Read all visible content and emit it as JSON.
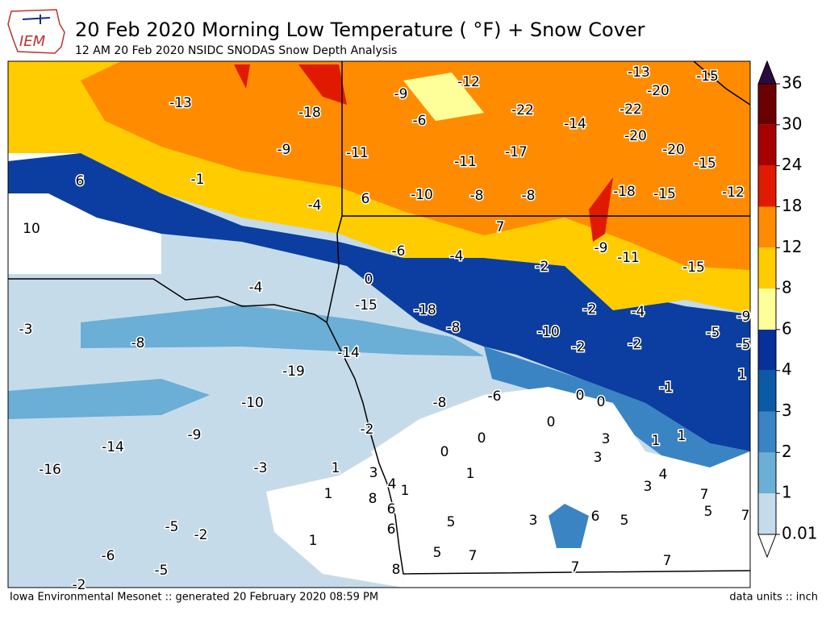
{
  "header": {
    "logo": "IEM",
    "title": "20 Feb 2020 Morning Low Temperature ( °F) + Snow Cover",
    "subtitle": "12 AM 20 Feb 2020 NSIDC SNODAS Snow Depth Analysis"
  },
  "footer": {
    "left": "Iowa Environmental Mesonet :: generated 20 February 2020 08:59 PM",
    "right": "data units :: inch"
  },
  "colorbar": {
    "levels": [
      0.01,
      1,
      2,
      3,
      4,
      6,
      8,
      12,
      18,
      24,
      30,
      36
    ],
    "colors": [
      "#c6dbea",
      "#6baed6",
      "#3a84c4",
      "#0b5aa5",
      "#08309a",
      "#ffff99",
      "#ffcc00",
      "#ff8c00",
      "#e01a00",
      "#a80000",
      "#6a0000"
    ],
    "under_color": "#ffffff",
    "over_color": "#2a0a40"
  },
  "map": {
    "station_values": [
      -13,
      -18,
      -9,
      -12,
      -13,
      -15,
      -20,
      -22,
      -22,
      -14,
      -6,
      -9,
      -11,
      -11,
      -17,
      -20,
      -20,
      -15,
      6,
      -1,
      -4,
      6,
      -10,
      -8,
      -8,
      -18,
      -15,
      -12,
      10,
      7,
      -6,
      -4,
      -2,
      -9,
      -11,
      -15,
      0,
      -4,
      -15,
      -18,
      -2,
      -4,
      -9,
      -3,
      -8,
      -8,
      -10,
      -5,
      -5,
      -2,
      -2,
      -14,
      -19,
      1,
      -1,
      -8,
      -6,
      0,
      0,
      -10,
      0,
      -2,
      0,
      3,
      1,
      1,
      -9,
      -14,
      0,
      3,
      -16,
      -3,
      1,
      3,
      1,
      4,
      4,
      1,
      1,
      8,
      3,
      7,
      6,
      5,
      7,
      5,
      3,
      6,
      5,
      -5,
      -2,
      6,
      1,
      -6,
      5,
      7,
      7,
      7,
      -5,
      8,
      -2
    ]
  }
}
